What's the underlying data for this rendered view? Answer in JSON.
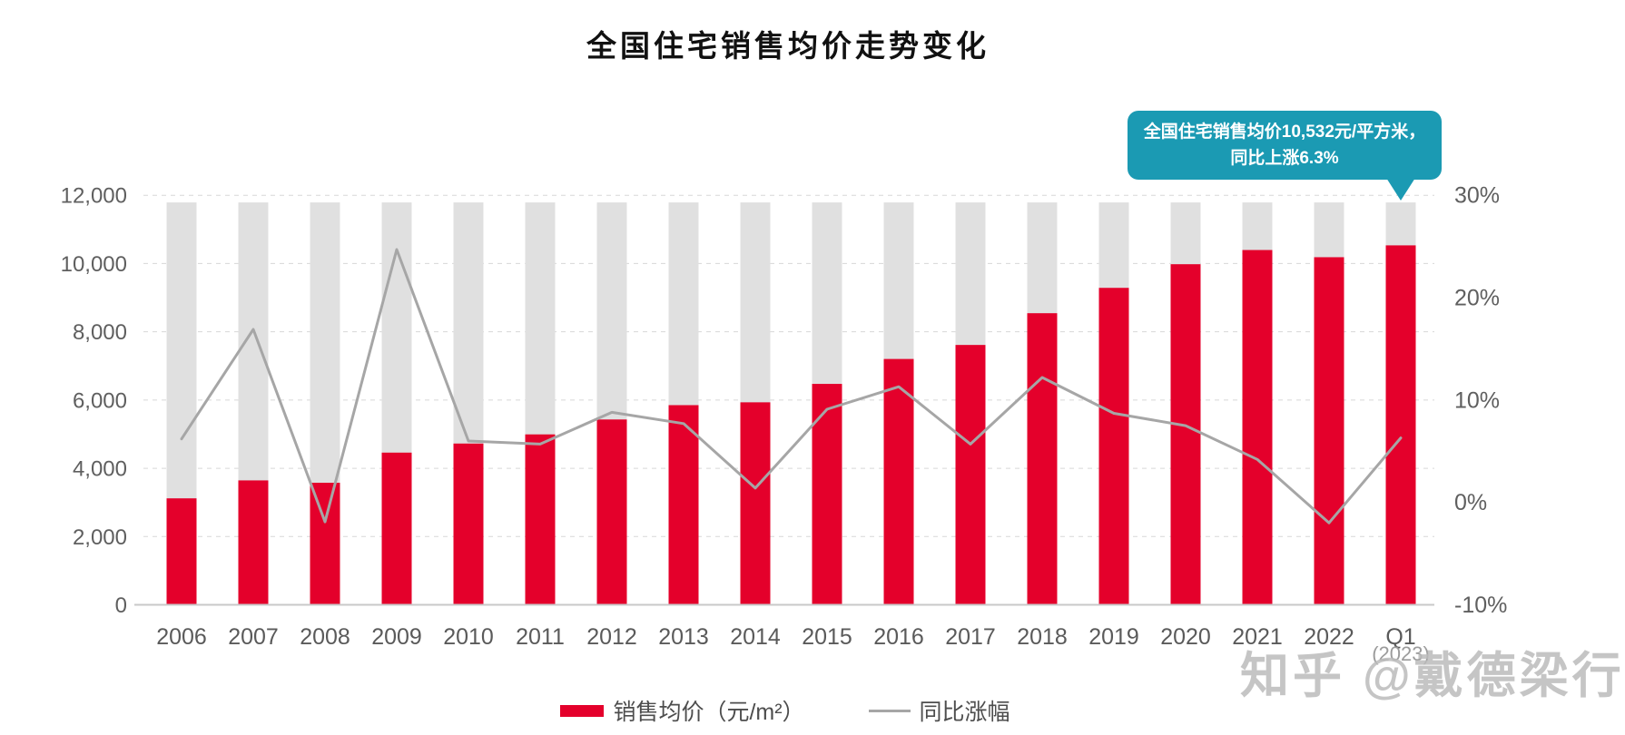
{
  "title": "全国住宅销售均价走势变化",
  "tooltip": {
    "line1": "全国住宅销售均价10,532元/平方米，",
    "line2": "同比上涨6.3%",
    "bg_color": "#1b9ab3"
  },
  "q1_sublabel": "(2023)",
  "watermark": "知乎 @戴德梁行",
  "legend": [
    {
      "label": "销售均价（元/m²）",
      "type": "bar",
      "color": "#e4002b"
    },
    {
      "label": "同比涨幅",
      "type": "line",
      "color": "#a6a6a6"
    }
  ],
  "chart_data": {
    "type": "bar+line combo",
    "title": "全国住宅销售均价走势变化",
    "categories": [
      "2006",
      "2007",
      "2008",
      "2009",
      "2010",
      "2011",
      "2012",
      "2013",
      "2014",
      "2015",
      "2016",
      "2017",
      "2018",
      "2019",
      "2020",
      "2021",
      "2022",
      "Q1"
    ],
    "series": [
      {
        "name": "销售均价（元/m²）",
        "type": "bar",
        "axis": "left",
        "color": "#e4002b",
        "values": [
          3119,
          3645,
          3576,
          4459,
          4725,
          4993,
          5430,
          5850,
          5933,
          6473,
          7203,
          7614,
          8544,
          9287,
          9980,
          10396,
          10185,
          10532
        ]
      },
      {
        "name": "同比涨幅",
        "type": "line",
        "axis": "right",
        "color": "#a6a6a6",
        "values": [
          6.2,
          16.9,
          -1.9,
          24.7,
          6.0,
          5.7,
          8.8,
          7.7,
          1.4,
          9.1,
          11.3,
          5.7,
          12.2,
          8.7,
          7.5,
          4.2,
          -2.0,
          6.3
        ]
      }
    ],
    "background_bar_value": 11790,
    "background_bar_color": "#e0e0e0",
    "left_axis": {
      "ticks": [
        "0",
        "2,000",
        "4,000",
        "6,000",
        "8,000",
        "10,000",
        "12,000"
      ],
      "tick_values": [
        0,
        2000,
        4000,
        6000,
        8000,
        10000,
        12000
      ],
      "min": 0,
      "max": 12000
    },
    "right_axis": {
      "ticks": [
        "-10%",
        "0%",
        "10%",
        "20%",
        "30%"
      ],
      "tick_values": [
        -10,
        0,
        10,
        20,
        30
      ],
      "min": -10,
      "max": 30
    },
    "grid": "dashed horizontal lines at every 2,000 (left axis)",
    "legend_position": "bottom-center",
    "annotation_points_to": "Q1"
  }
}
